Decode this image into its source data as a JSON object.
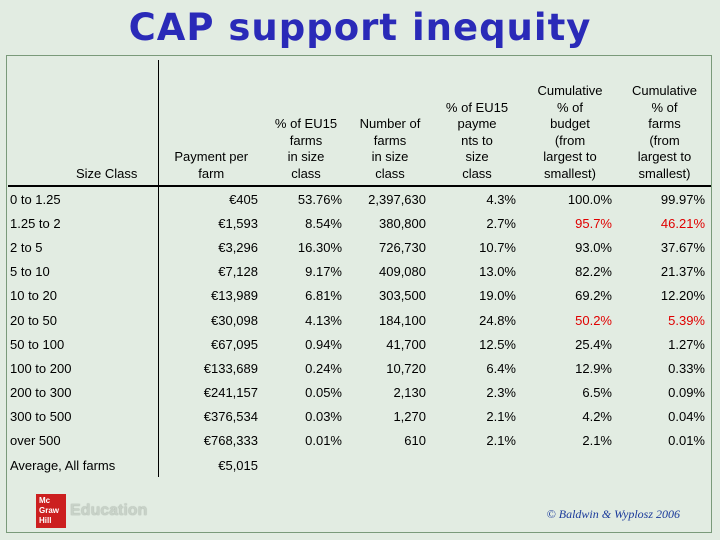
{
  "title": "CAP support inequity",
  "table": {
    "headers": [
      "Size Class",
      "Payment per\nfarm",
      "% of EU15\nfarms\nin size\nclass",
      "Number of\nfarms\nin size\nclass",
      "% of EU15\npayme\nnts to\nsize\nclass",
      "Cumulative\n% of\nbudget\n(from\nlargest to\nsmallest)",
      "Cumulative\n% of\nfarms\n(from\nlargest to\nsmallest)"
    ],
    "rows": [
      [
        "0 to 1.25",
        "€405",
        "53.76%",
        "2,397,630",
        "4.3%",
        "100.0%",
        "99.97%"
      ],
      [
        "1.25 to 2",
        "€1,593",
        "8.54%",
        "380,800",
        "2.7%",
        "95.7%",
        "46.21%"
      ],
      [
        "2 to 5",
        "€3,296",
        "16.30%",
        "726,730",
        "10.7%",
        "93.0%",
        "37.67%"
      ],
      [
        "5 to 10",
        "€7,128",
        "9.17%",
        "409,080",
        "13.0%",
        "82.2%",
        "21.37%"
      ],
      [
        "10 to 20",
        "€13,989",
        "6.81%",
        "303,500",
        "19.0%",
        "69.2%",
        "12.20%"
      ],
      [
        "20 to 50",
        "€30,098",
        "4.13%",
        "184,100",
        "24.8%",
        "50.2%",
        "5.39%"
      ],
      [
        "50 to 100",
        "€67,095",
        "0.94%",
        "41,700",
        "12.5%",
        "25.4%",
        "1.27%"
      ],
      [
        "100 to 200",
        "€133,689",
        "0.24%",
        "10,720",
        "6.4%",
        "12.9%",
        "0.33%"
      ],
      [
        "200 to 300",
        "€241,157",
        "0.05%",
        "2,130",
        "2.3%",
        "6.5%",
        "0.09%"
      ],
      [
        "300 to 500",
        "€376,534",
        "0.03%",
        "1,270",
        "2.1%",
        "4.2%",
        "0.04%"
      ],
      [
        "over 500",
        "€768,333",
        "0.01%",
        "610",
        "2.1%",
        "2.1%",
        "0.01%"
      ],
      [
        "Average, All farms",
        "€5,015",
        "",
        "",
        "",
        "",
        ""
      ]
    ],
    "highlight_color": "#e00000",
    "highlighted_cells": [
      {
        "row": 1,
        "col": 5
      },
      {
        "row": 1,
        "col": 6
      },
      {
        "row": 5,
        "col": 5
      },
      {
        "row": 5,
        "col": 6
      }
    ]
  },
  "footer": {
    "logo_mark": "Mc Graw Hill",
    "logo_text": "Education",
    "copyright": "© Baldwin & Wyplosz 2006"
  }
}
